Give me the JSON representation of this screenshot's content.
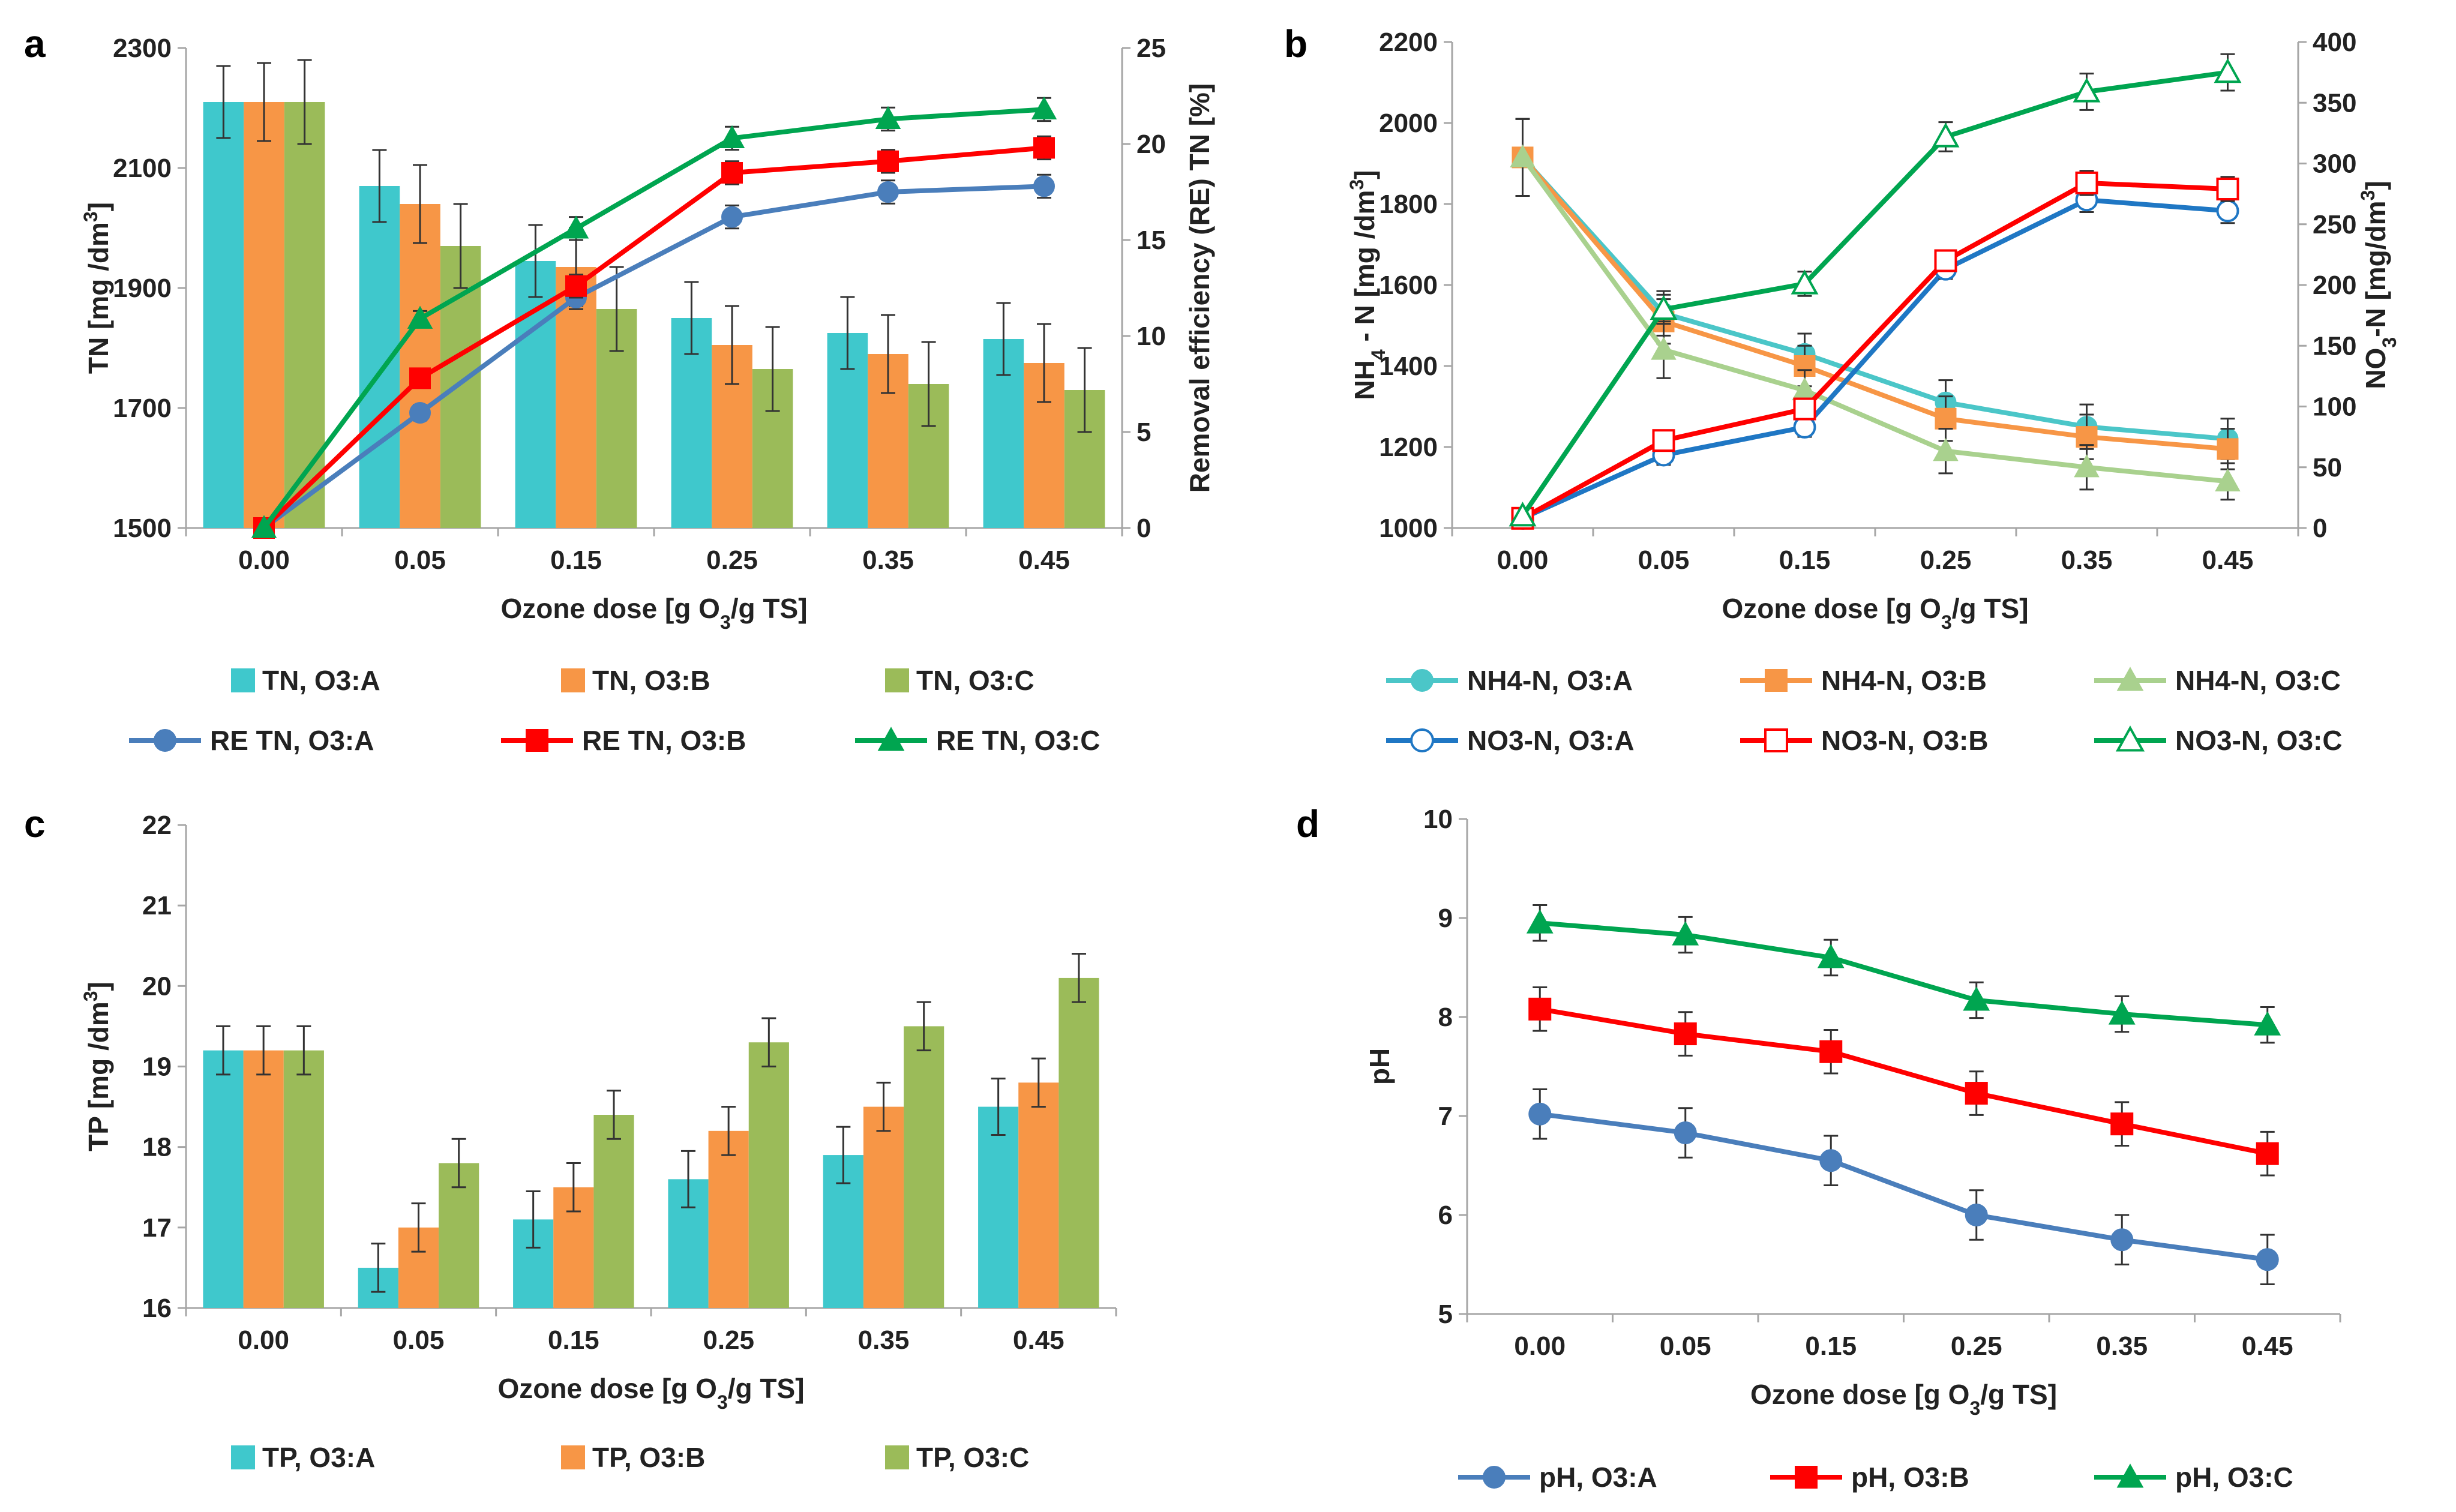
{
  "chart_data": [
    {
      "panel": "a",
      "type": "bar+line",
      "categories": [
        "0.00",
        "0.05",
        "0.15",
        "0.25",
        "0.35",
        "0.45"
      ],
      "xlabel": "Ozone dose [g O3/g TS]",
      "ylabel": "TN [mg /dm3]",
      "y2label": "Removal  efficiency (RE) TN [%]",
      "ylim": [
        1500,
        2300
      ],
      "yticks": [
        "1500",
        "1700",
        "1900",
        "2100",
        "2300"
      ],
      "y2lim": [
        0,
        25
      ],
      "y2ticks": [
        "0",
        "5",
        "10",
        "15",
        "20",
        "25"
      ],
      "bars": [
        {
          "name": "TN, O3:A",
          "color": "#3fc8cc",
          "values": [
            2210,
            2070,
            1945,
            1850,
            1825,
            1815
          ],
          "err": [
            60,
            60,
            60,
            60,
            60,
            60
          ]
        },
        {
          "name": "TN, O3:B",
          "color": "#f79646",
          "values": [
            2210,
            2040,
            1935,
            1805,
            1790,
            1775
          ],
          "err": [
            65,
            65,
            65,
            65,
            65,
            65
          ]
        },
        {
          "name": "TN, O3:C",
          "color": "#9bbb59",
          "values": [
            2210,
            1970,
            1865,
            1765,
            1740,
            1730
          ],
          "err": [
            70,
            70,
            70,
            70,
            70,
            70
          ]
        }
      ],
      "lines": [
        {
          "name": "RE TN, O3:A",
          "color": "#4a7ebb",
          "marker": "circle",
          "values": [
            0,
            6.0,
            12.0,
            16.2,
            17.5,
            17.8
          ],
          "err": [
            0,
            0.4,
            0.6,
            0.6,
            0.6,
            0.6
          ]
        },
        {
          "name": "RE TN, O3:B",
          "color": "#ff0000",
          "marker": "square",
          "values": [
            0,
            7.8,
            12.6,
            18.5,
            19.1,
            19.8
          ],
          "err": [
            0,
            0.4,
            0.6,
            0.6,
            0.6,
            0.6
          ]
        },
        {
          "name": "RE TN, O3:C",
          "color": "#00a550",
          "marker": "triangle",
          "values": [
            0,
            10.9,
            15.6,
            20.3,
            21.3,
            21.8
          ],
          "err": [
            0,
            0.4,
            0.6,
            0.6,
            0.6,
            0.6
          ]
        }
      ]
    },
    {
      "panel": "b",
      "type": "line",
      "categories": [
        "0.00",
        "0.05",
        "0.15",
        "0.25",
        "0.35",
        "0.45"
      ],
      "xlabel": "Ozone dose [g O3/g TS]",
      "ylabel": "NH4 - N [mg /dm3]",
      "y2label": "NO3-N [mg/dm3]",
      "ylim": [
        1000,
        2200
      ],
      "yticks": [
        "1000",
        "1200",
        "1400",
        "1600",
        "1800",
        "2000",
        "2200"
      ],
      "y2lim": [
        0,
        400
      ],
      "y2ticks": [
        "0",
        "50",
        "100",
        "150",
        "200",
        "250",
        "300",
        "350",
        "400"
      ],
      "series": [
        {
          "name": "NH4-N, O3:A",
          "color": "#4bc6c8",
          "marker": "circle",
          "axis": "left",
          "values": [
            1915,
            1530,
            1430,
            1310,
            1250,
            1220
          ],
          "err": [
            95,
            55,
            50,
            55,
            55,
            50
          ]
        },
        {
          "name": "NH4-N, O3:B",
          "color": "#f79646",
          "marker": "square",
          "axis": "left",
          "values": [
            1915,
            1510,
            1400,
            1270,
            1225,
            1195
          ],
          "err": [
            95,
            55,
            50,
            55,
            55,
            50
          ]
        },
        {
          "name": "NH4-N, O3:C",
          "color": "#a9d18e",
          "marker": "triangle",
          "axis": "left",
          "values": [
            1915,
            1440,
            1340,
            1190,
            1150,
            1115
          ],
          "err": [
            95,
            70,
            50,
            55,
            55,
            45
          ]
        },
        {
          "name": "NO3-N, O3:A",
          "color": "#1f77c4",
          "marker": "circle-open",
          "axis": "right",
          "values": [
            8,
            60,
            83,
            213,
            270,
            261
          ],
          "err": [
            0,
            8,
            8,
            8,
            10,
            10
          ]
        },
        {
          "name": "NO3-N, O3:B",
          "color": "#ff0000",
          "marker": "square-open",
          "axis": "right",
          "values": [
            8,
            72,
            98,
            220,
            284,
            279
          ],
          "err": [
            0,
            8,
            8,
            8,
            10,
            10
          ]
        },
        {
          "name": "NO3-N, O3:C",
          "color": "#00a550",
          "marker": "triangle-open",
          "axis": "right",
          "values": [
            10,
            180,
            201,
            322,
            359,
            375
          ],
          "err": [
            0,
            12,
            10,
            12,
            15,
            15
          ]
        }
      ]
    },
    {
      "panel": "c",
      "type": "bar",
      "categories": [
        "0.00",
        "0.05",
        "0.15",
        "0.25",
        "0.35",
        "0.45"
      ],
      "xlabel": "Ozone dose [g O3/g TS]",
      "ylabel": "TP [mg /dm3]",
      "ylim": [
        16,
        22
      ],
      "yticks": [
        "16",
        "17",
        "18",
        "19",
        "20",
        "21",
        "22"
      ],
      "series": [
        {
          "name": "TP, O3:A",
          "color": "#3fc8cc",
          "values": [
            19.2,
            16.5,
            17.1,
            17.6,
            17.9,
            18.5
          ],
          "err": [
            0.3,
            0.3,
            0.35,
            0.35,
            0.35,
            0.35
          ]
        },
        {
          "name": "TP, O3:B",
          "color": "#f79646",
          "values": [
            19.2,
            17.0,
            17.5,
            18.2,
            18.5,
            18.8
          ],
          "err": [
            0.3,
            0.3,
            0.3,
            0.3,
            0.3,
            0.3
          ]
        },
        {
          "name": "TP, O3:C",
          "color": "#9bbb59",
          "values": [
            19.2,
            17.8,
            18.4,
            19.3,
            19.5,
            20.1
          ],
          "err": [
            0.3,
            0.3,
            0.3,
            0.3,
            0.3,
            0.3
          ]
        }
      ]
    },
    {
      "panel": "d",
      "type": "line",
      "categories": [
        "0.00",
        "0.05",
        "0.15",
        "0.25",
        "0.35",
        "0.45"
      ],
      "xlabel": "Ozone dose [g O3/g TS]",
      "ylabel": "pH",
      "ylim": [
        5,
        10
      ],
      "yticks": [
        "5",
        "6",
        "7",
        "8",
        "9",
        "10"
      ],
      "series": [
        {
          "name": "pH, O3:A",
          "color": "#4a7ebb",
          "marker": "circle",
          "values": [
            7.02,
            6.83,
            6.55,
            6.0,
            5.75,
            5.55
          ],
          "err": [
            0.25,
            0.25,
            0.25,
            0.25,
            0.25,
            0.25
          ]
        },
        {
          "name": "pH, O3:B",
          "color": "#ff0000",
          "marker": "square",
          "values": [
            8.08,
            7.83,
            7.65,
            7.23,
            6.92,
            6.62
          ],
          "err": [
            0.22,
            0.22,
            0.22,
            0.22,
            0.22,
            0.22
          ]
        },
        {
          "name": "pH, O3:C",
          "color": "#00a550",
          "marker": "triangle",
          "values": [
            8.95,
            8.83,
            8.6,
            8.17,
            8.03,
            7.92
          ],
          "err": [
            0.18,
            0.18,
            0.18,
            0.18,
            0.18,
            0.18
          ]
        }
      ]
    }
  ]
}
